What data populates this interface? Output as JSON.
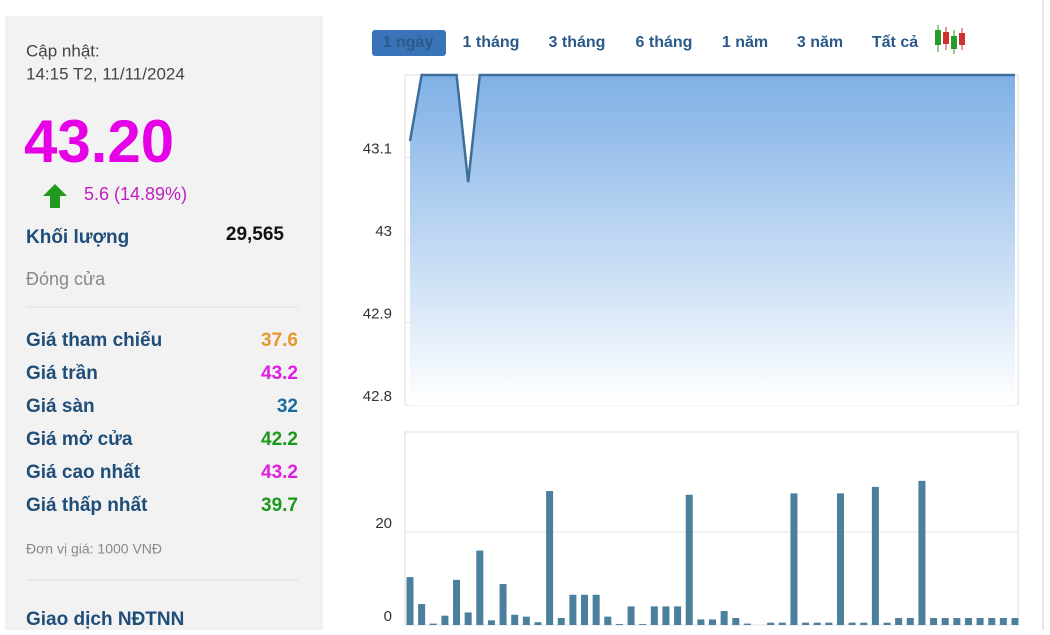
{
  "panel": {
    "update_label": "Cập nhật:",
    "update_time": "14:15 T2, 11/11/2024",
    "price": "43.20",
    "change": "5.6 (14.89%)",
    "volume_label": "Khối lượng",
    "volume": "29,565",
    "status": "Đóng cửa",
    "rows": [
      {
        "label": "Giá tham chiếu",
        "value": "37.6",
        "color": "#e8962e"
      },
      {
        "label": "Giá trần",
        "value": "43.2",
        "color": "#e01ee0"
      },
      {
        "label": "Giá sàn",
        "value": "32",
        "color": "#1a6aa0"
      },
      {
        "label": "Giá mở cửa",
        "value": "42.2",
        "color": "#1a9a1a"
      },
      {
        "label": "Giá cao nhất",
        "value": "43.2",
        "color": "#e01ee0"
      },
      {
        "label": "Giá thấp nhất",
        "value": "39.7",
        "color": "#1a9a1a"
      }
    ],
    "unit_note": "Đơn vị giá: 1000 VNĐ",
    "foreign_label": "Giao dịch NĐTNN"
  },
  "tabs": [
    "1 ngày",
    "1 tháng",
    "3 tháng",
    "6 tháng",
    "1 năm",
    "3 năm",
    "Tất cả"
  ],
  "chart_data": [
    {
      "type": "area",
      "color": "#3d6f9a",
      "grid": true,
      "values": [
        43.12,
        43.2,
        43.2,
        43.2,
        43.2,
        43.07,
        43.2,
        43.2,
        43.2,
        43.2,
        43.2,
        43.2,
        43.2,
        43.2,
        43.2,
        43.2,
        43.2,
        43.2,
        43.2,
        43.2,
        43.2,
        43.2,
        43.2,
        43.2,
        43.2,
        43.2,
        43.2,
        43.2,
        43.2,
        43.2,
        43.2,
        43.2,
        43.2,
        43.2,
        43.2,
        43.2,
        43.2,
        43.2,
        43.2,
        43.2,
        43.2,
        43.2,
        43.2,
        43.2,
        43.2,
        43.2,
        43.2,
        43.2,
        43.2,
        43.2,
        43.2,
        43.2,
        43.2
      ],
      "ylim": [
        42.8,
        43.2
      ],
      "yticks": [
        42.8,
        42.9,
        43,
        43.1
      ]
    },
    {
      "type": "bar",
      "color": "#4a7f9e",
      "grid": true,
      "values": [
        10.3,
        4.5,
        0.3,
        2,
        9.7,
        2.7,
        16,
        1,
        8.8,
        2.2,
        1.8,
        0.6,
        28.8,
        1.5,
        6.5,
        6.5,
        6.5,
        1.8,
        0.2,
        4,
        0.2,
        4,
        4,
        4,
        28,
        1.2,
        1.2,
        3,
        1.5,
        0.3,
        0,
        0.5,
        0.5,
        28.3,
        0.5,
        0.5,
        0.5,
        28.3,
        0.5,
        0.5,
        29.7,
        0.5,
        1.5,
        1.5,
        31,
        1.5,
        1.5,
        1.5,
        1.5,
        1.5,
        1.5,
        1.5,
        1.5
      ],
      "ylim": [
        0,
        41.5
      ],
      "yticks": [
        0,
        20
      ]
    }
  ]
}
